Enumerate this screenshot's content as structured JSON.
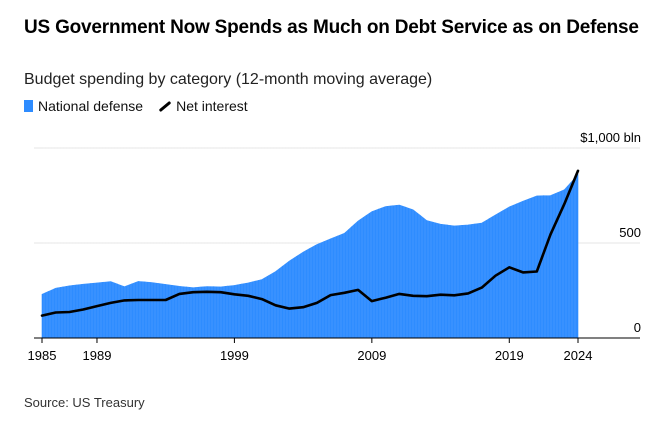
{
  "title": "US Government Now Spends as Much on Debt Service as on Defense",
  "subtitle": "Budget spending by category (12-month moving average)",
  "source": "Source: US Treasury",
  "colors": {
    "defense": "#2e8cff",
    "interest": "#000000",
    "grid": "#e6e6e6",
    "axis": "#000000"
  },
  "chart_data": {
    "type": "area",
    "ylim": [
      0,
      1000
    ],
    "xlim": [
      1985,
      2024.5
    ],
    "y_ticks": [
      {
        "value": 1000,
        "label": "$1,000 bln"
      },
      {
        "value": 500,
        "label": "500"
      },
      {
        "value": 0,
        "label": "0"
      }
    ],
    "x_ticks": [
      {
        "value": 1985,
        "label": "1985"
      },
      {
        "value": 1989,
        "label": "1989"
      },
      {
        "value": 1999,
        "label": "1999"
      },
      {
        "value": 2009,
        "label": "2009"
      },
      {
        "value": 2019,
        "label": "2019"
      },
      {
        "value": 2024,
        "label": "2024"
      }
    ],
    "grid": true,
    "legend": "top-left",
    "series": [
      {
        "name": "National defense",
        "type": "area",
        "x": [
          1985,
          1986,
          1987,
          1988,
          1989,
          1990,
          1991,
          1992,
          1993,
          1994,
          1995,
          1996,
          1997,
          1998,
          1999,
          2000,
          2001,
          2002,
          2003,
          2004,
          2005,
          2006,
          2007,
          2008,
          2009,
          2010,
          2011,
          2012,
          2013,
          2014,
          2015,
          2016,
          2017,
          2018,
          2019,
          2020,
          2021,
          2022,
          2023,
          2024
        ],
        "values": [
          230,
          262,
          275,
          283,
          290,
          297,
          270,
          298,
          292,
          282,
          272,
          265,
          271,
          269,
          277,
          290,
          308,
          350,
          405,
          452,
          492,
          522,
          551,
          616,
          665,
          692,
          700,
          675,
          618,
          599,
          590,
          595,
          605,
          648,
          690,
          720,
          748,
          750,
          780,
          860
        ]
      },
      {
        "name": "Net interest",
        "type": "line",
        "x": [
          1985,
          1986,
          1987,
          1988,
          1989,
          1990,
          1991,
          1992,
          1993,
          1994,
          1995,
          1996,
          1997,
          1998,
          1999,
          2000,
          2001,
          2002,
          2003,
          2004,
          2005,
          2006,
          2007,
          2008,
          2009,
          2010,
          2011,
          2012,
          2013,
          2014,
          2015,
          2016,
          2017,
          2018,
          2019,
          2020,
          2021,
          2022,
          2023,
          2024
        ],
        "values": [
          118,
          134,
          137,
          150,
          168,
          185,
          198,
          200,
          200,
          200,
          232,
          241,
          243,
          241,
          230,
          222,
          205,
          172,
          155,
          162,
          185,
          226,
          238,
          253,
          194,
          212,
          232,
          222,
          220,
          228,
          225,
          235,
          265,
          328,
          372,
          345,
          350,
          545,
          705,
          880
        ]
      }
    ]
  }
}
